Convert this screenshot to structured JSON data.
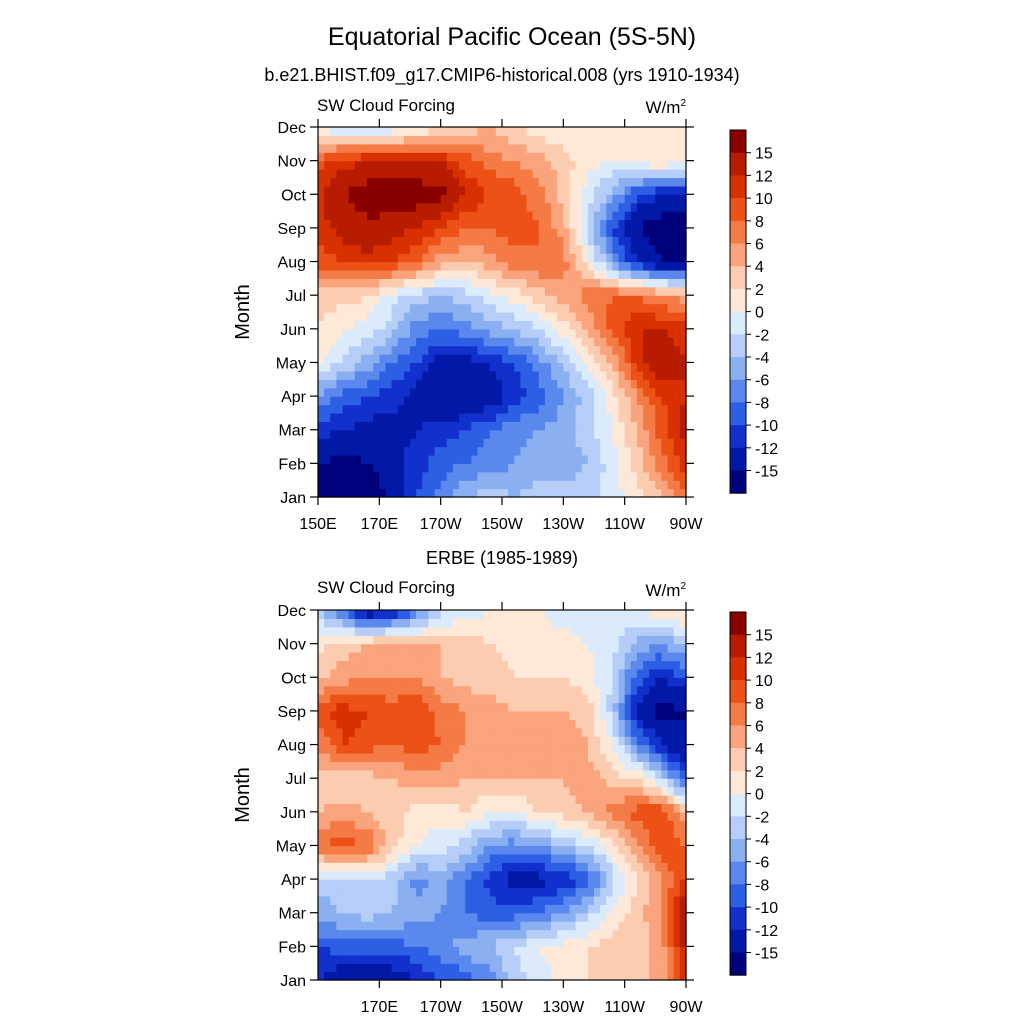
{
  "main_title": "Equatorial Pacific Ocean (5S-5N)",
  "colorbar": {
    "levels": [
      "15",
      "12",
      "10",
      "8",
      "6",
      "4",
      "2",
      "0",
      "-2",
      "-4",
      "-6",
      "-8",
      "-10",
      "-12",
      "-15"
    ],
    "colors": [
      "#8a0000",
      "#b71c00",
      "#d93000",
      "#ec5116",
      "#f47a46",
      "#f9a47c",
      "#fcccb0",
      "#fee8d8",
      "#dcebfb",
      "#b6cef7",
      "#8ab0f1",
      "#5b88ec",
      "#2d5fe5",
      "#1230cc",
      "#0219a8",
      "#00007a"
    ]
  },
  "chart_data": [
    {
      "type": "heatmap",
      "title": "b.e21.BHIST.f09_g17.CMIP6-historical.008 (yrs 1910-1934)",
      "left_string": "SW Cloud Forcing",
      "right_string": "W/m",
      "right_string_sup": "2",
      "ylabel": "Month",
      "x_tick_labels": [
        "150E",
        "170E",
        "170W",
        "150W",
        "130W",
        "110W",
        "90W"
      ],
      "y_tick_labels": [
        "Jan",
        "Feb",
        "Mar",
        "Apr",
        "May",
        "Jun",
        "Jul",
        "Aug",
        "Sep",
        "Oct",
        "Nov",
        "Dec"
      ],
      "x_range_deg_east": [
        150,
        270
      ],
      "y_range_months": [
        1,
        12
      ],
      "values": [
        [
          -18,
          -18,
          -18,
          -14,
          -10,
          -7,
          -4,
          -3,
          -4,
          -3,
          -3,
          -3,
          -1,
          1,
          4,
          8
        ],
        [
          -15,
          -16,
          -15,
          -13,
          -11,
          -9,
          -8,
          -7,
          -6,
          -5,
          -5,
          -4,
          -1,
          3,
          7,
          11
        ],
        [
          -11,
          -12,
          -13,
          -13,
          -12,
          -11,
          -10,
          -8,
          -7,
          -6,
          -5,
          -3,
          0,
          4,
          9,
          13
        ],
        [
          -6,
          -9,
          -10,
          -11,
          -13,
          -15,
          -15,
          -14,
          -11,
          -9,
          -6,
          -3,
          1,
          6,
          10,
          12
        ],
        [
          0,
          -2,
          -5,
          -8,
          -10,
          -13,
          -13,
          -12,
          -10,
          -7,
          -4,
          0,
          4,
          11,
          14,
          12
        ],
        [
          2,
          0,
          -1,
          -3,
          -7,
          -8,
          -7,
          -5,
          -4,
          -2,
          1,
          4,
          9,
          12,
          12,
          11
        ],
        [
          3,
          3,
          2,
          -1,
          -3,
          -4,
          -3,
          -1,
          1,
          3,
          5,
          7,
          8,
          8,
          6,
          5
        ],
        [
          9,
          10,
          11,
          10,
          8,
          5,
          4,
          5,
          7,
          8,
          7,
          1,
          -6,
          -12,
          -15,
          -15
        ],
        [
          11,
          13,
          14,
          13,
          12,
          10,
          8,
          8,
          9,
          8,
          5,
          -3,
          -10,
          -15,
          -17,
          -17
        ],
        [
          11,
          15,
          17,
          18,
          17,
          16,
          12,
          10,
          9,
          7,
          3,
          -1,
          -5,
          -10,
          -12,
          -12
        ],
        [
          9,
          11,
          12,
          13,
          12,
          12,
          9,
          7,
          6,
          5,
          3,
          1,
          0,
          1,
          2,
          1
        ],
        [
          -1,
          -2,
          -3,
          -2,
          0,
          1,
          3,
          4,
          2,
          1,
          0,
          0,
          0,
          1,
          2,
          0
        ]
      ]
    },
    {
      "type": "heatmap",
      "title": "ERBE (1985-1989)",
      "left_string": "SW Cloud Forcing",
      "right_string": "W/m",
      "right_string_sup": "2",
      "ylabel": "Month",
      "x_tick_labels": [
        "170E",
        "170W",
        "150W",
        "130W",
        "110W",
        "90W"
      ],
      "y_tick_labels": [
        "Jan",
        "Feb",
        "Mar",
        "Apr",
        "May",
        "Jun",
        "Jul",
        "Aug",
        "Sep",
        "Oct",
        "Nov",
        "Dec"
      ],
      "x_range_deg_east": [
        150,
        270
      ],
      "y_range_months": [
        1,
        12
      ],
      "values": [
        [
          -12,
          -14,
          -15,
          -14,
          -12,
          -10,
          -9,
          -7,
          -3,
          -1,
          1,
          2,
          3,
          3,
          5,
          12
        ],
        [
          -10,
          -9,
          -9,
          -9,
          -8,
          -7,
          -5,
          -4,
          -2,
          0,
          1,
          2,
          3,
          3,
          5,
          13
        ],
        [
          -5,
          -4,
          -3,
          -4,
          -5,
          -6,
          -8,
          -9,
          -9,
          -8,
          -6,
          -3,
          1,
          3,
          6,
          15
        ],
        [
          -3,
          -3,
          -2,
          -3,
          -7,
          -5,
          -8,
          -11,
          -13,
          -13,
          -12,
          -9,
          -3,
          2,
          6,
          10
        ],
        [
          8,
          9,
          8,
          3,
          0,
          -1,
          -3,
          -6,
          -7,
          -6,
          -4,
          -2,
          1,
          5,
          10,
          8
        ],
        [
          4,
          5,
          4,
          3,
          1,
          1,
          2,
          0,
          0,
          2,
          3,
          4,
          7,
          9,
          10,
          4
        ],
        [
          3,
          2,
          3,
          4,
          5,
          5,
          4,
          4,
          4,
          4,
          4,
          5,
          3,
          2,
          -2,
          -10
        ],
        [
          6,
          10,
          9,
          8,
          9,
          8,
          6,
          5,
          4,
          5,
          5,
          4,
          0,
          -7,
          -12,
          -15
        ],
        [
          9,
          11,
          10,
          9,
          10,
          7,
          6,
          5,
          4,
          4,
          4,
          3,
          -3,
          -13,
          -16,
          -15
        ],
        [
          3,
          5,
          6,
          6,
          6,
          4,
          3,
          3,
          2,
          2,
          2,
          1,
          -2,
          -9,
          -12,
          -10
        ],
        [
          1,
          3,
          4,
          5,
          4,
          4,
          3,
          2,
          1,
          1,
          1,
          0,
          -1,
          -5,
          -6,
          -4
        ],
        [
          -3,
          -8,
          -15,
          -13,
          -8,
          -3,
          -1,
          0,
          0,
          0,
          -1,
          -2,
          -1,
          0,
          2,
          3
        ]
      ]
    }
  ]
}
